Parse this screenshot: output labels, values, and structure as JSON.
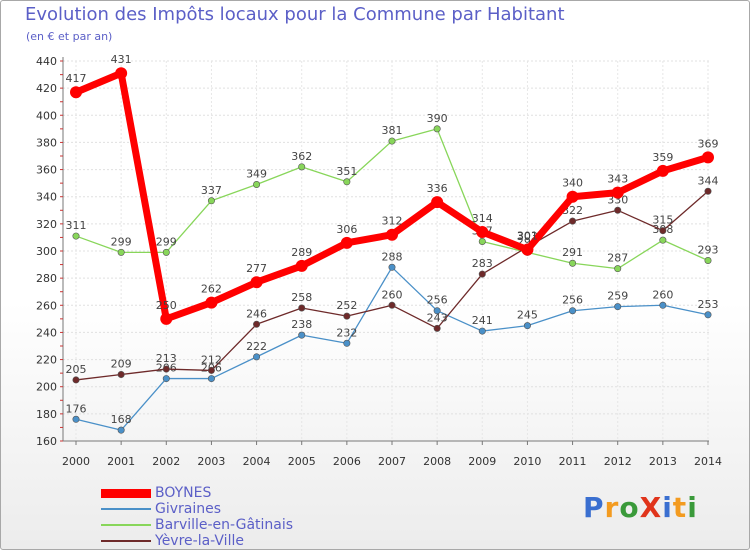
{
  "chart_data": {
    "type": "line",
    "title": "Evolution des Impôts locaux pour la Commune par Habitant",
    "subtitle": "(en € et par an)",
    "xlabel": "",
    "ylabel": "",
    "x": [
      "2000",
      "2001",
      "2002",
      "2003",
      "2004",
      "2005",
      "2006",
      "2007",
      "2008",
      "2009",
      "2010",
      "2011",
      "2012",
      "2013",
      "2014"
    ],
    "ylim": [
      160,
      440
    ],
    "yticks": [
      160,
      180,
      200,
      220,
      240,
      260,
      280,
      300,
      320,
      340,
      360,
      380,
      400,
      420,
      440
    ],
    "grid": true,
    "legend_position": "bottom-left",
    "series": [
      {
        "name": "BOYNES",
        "color": "#ff0000",
        "values": [
          417,
          431,
          250,
          262,
          277,
          289,
          306,
          312,
          336,
          314,
          301,
          340,
          343,
          359,
          369
        ]
      },
      {
        "name": "Givraines",
        "color": "#4a90c8",
        "values": [
          176,
          168,
          206,
          206,
          222,
          238,
          232,
          288,
          256,
          241,
          245,
          256,
          259,
          260,
          253
        ]
      },
      {
        "name": "Barville-en-Gâtinais",
        "color": "#88d65a",
        "values": [
          311,
          299,
          299,
          337,
          349,
          362,
          351,
          381,
          390,
          307,
          299,
          291,
          287,
          308,
          293
        ]
      },
      {
        "name": "Yèvre-la-Ville",
        "color": "#6e2a2a",
        "values": [
          205,
          209,
          213,
          212,
          246,
          258,
          252,
          260,
          243,
          283,
          303,
          322,
          330,
          315,
          344
        ]
      }
    ]
  },
  "logo": {
    "text": "ProXiti",
    "letter_colors": [
      "#3a6fd0",
      "#f39b20",
      "#3a9a3a",
      "#e0341b",
      "#3a6fd0",
      "#f39b20",
      "#3a9a3a"
    ]
  }
}
